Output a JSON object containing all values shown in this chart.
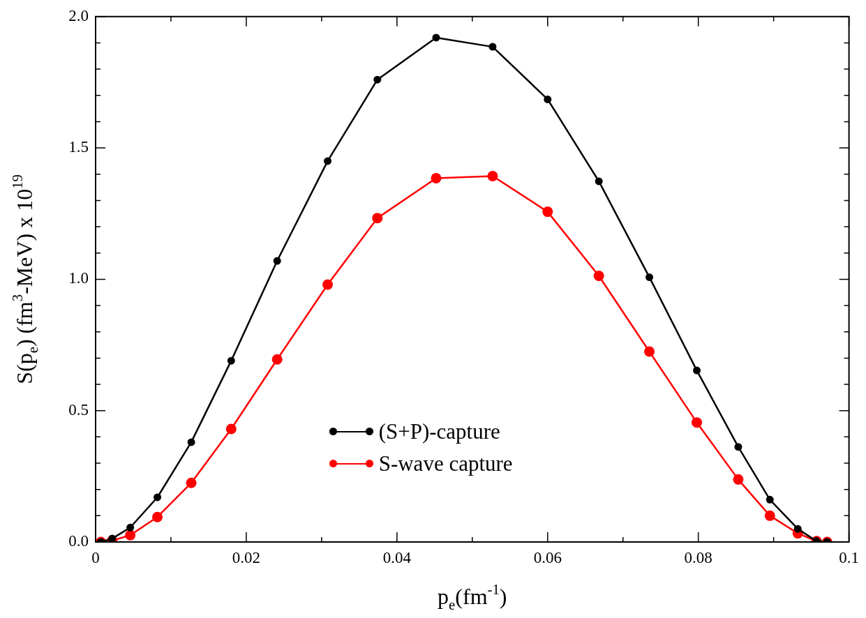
{
  "chart_data": {
    "type": "line",
    "xlabel": "p$_{e}$(fm$^{-1}$)",
    "ylabel": "S(p$_{e}$) (fm$^{3}$-MeV) x 10$^{19}$",
    "x": [
      0.0007,
      0.0022,
      0.0046,
      0.0082,
      0.0127,
      0.018,
      0.0241,
      0.0308,
      0.0374,
      0.0452,
      0.0527,
      0.06,
      0.0668,
      0.0735,
      0.0798,
      0.0853,
      0.0895,
      0.0932,
      0.0957,
      0.0971
    ],
    "series": [
      {
        "name": "(S+P)-capture",
        "color": "#000000",
        "values": [
          0,
          0.013,
          0.055,
          0.17,
          0.38,
          0.69,
          1.07,
          1.45,
          1.76,
          1.92,
          1.885,
          1.685,
          1.373,
          1.008,
          0.653,
          0.362,
          0.161,
          0.05,
          0.003,
          0
        ]
      },
      {
        "name": "S-wave capture",
        "color": "#ff0000",
        "values": [
          0,
          0.005,
          0.026,
          0.095,
          0.225,
          0.43,
          0.695,
          0.98,
          1.233,
          1.385,
          1.393,
          1.257,
          1.013,
          0.725,
          0.455,
          0.238,
          0.1,
          0.033,
          0.003,
          0
        ]
      }
    ],
    "xlim": [
      0,
      0.1
    ],
    "xticks": [
      0,
      {
        "value": 0.01,
        "label": null
      },
      0.02,
      {
        "value": 0.03,
        "label": null
      },
      0.04,
      {
        "value": 0.05,
        "label": null
      },
      0.06,
      {
        "value": 0.07,
        "label": null
      },
      0.08,
      {
        "value": 0.09,
        "label": null
      },
      0.1
    ],
    "ylim": [
      0,
      2
    ],
    "yticks": [
      {
        "value": 0,
        "label": "0.0"
      },
      {
        "value": 0.1,
        "label": null
      },
      {
        "value": 0.2,
        "label": null
      },
      {
        "value": 0.3,
        "label": null
      },
      {
        "value": 0.4,
        "label": null
      },
      {
        "value": 0.5,
        "label": "0.5"
      },
      {
        "value": 0.6,
        "label": null
      },
      {
        "value": 0.7,
        "label": null
      },
      {
        "value": 0.8,
        "label": null
      },
      {
        "value": 0.9,
        "label": null
      },
      {
        "value": 1,
        "label": "1.0"
      },
      {
        "value": 1.1,
        "label": null
      },
      {
        "value": 1.2,
        "label": null
      },
      {
        "value": 1.3,
        "label": null
      },
      {
        "value": 1.4,
        "label": null
      },
      {
        "value": 1.5,
        "label": "1.5"
      },
      {
        "value": 1.6,
        "label": null
      },
      {
        "value": 1.7,
        "label": null
      },
      {
        "value": 1.8,
        "label": null
      },
      {
        "value": 1.9,
        "label": null
      },
      {
        "value": 2,
        "label": "2.0"
      }
    ],
    "grid": false,
    "legend": "bottom",
    "marker": "circle",
    "line_style": "solid"
  }
}
